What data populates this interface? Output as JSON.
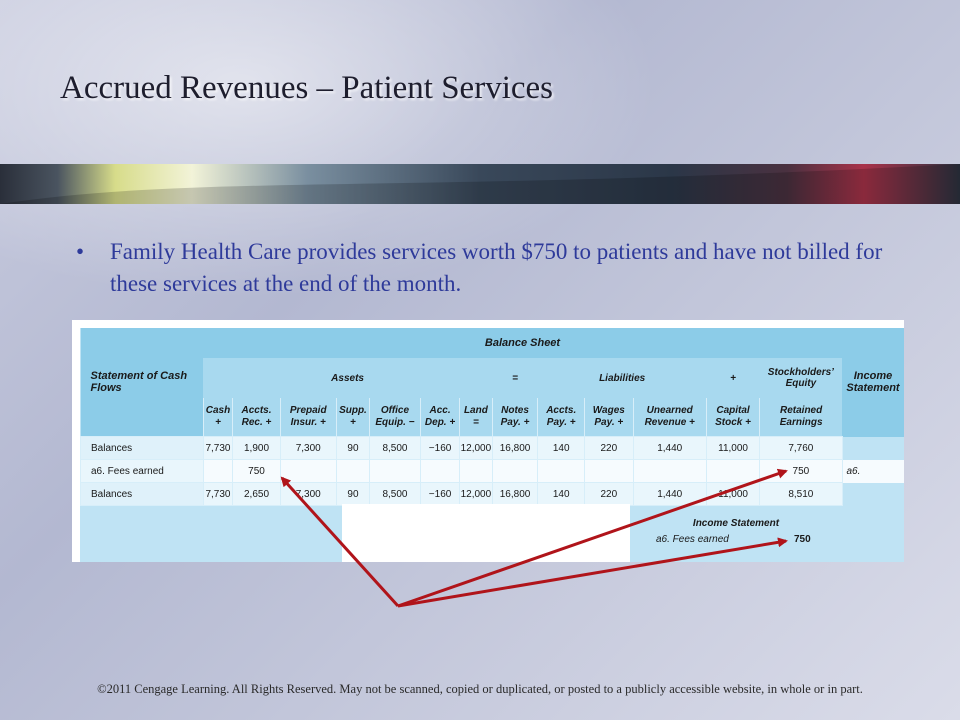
{
  "slide": {
    "title": "Accrued Revenues – Patient Services",
    "bullet": "Family Health Care provides services worth $750 to patients and have not billed for these services at the end of the month.",
    "footer": "©2011 Cengage Learning. All Rights Reserved. May not be scanned, copied or duplicated, or posted to a publicly accessible website, in whole or in part."
  },
  "figure": {
    "balance_sheet_title": "Balance Sheet",
    "left_header": "Statement of Cash Flows",
    "right_header": "Income Statement",
    "groups": {
      "assets": "Assets",
      "equals": "=",
      "liabilities": "Liabilities",
      "plus": "+",
      "equity": "Stockholders’ Equity"
    },
    "columns": [
      "Cash +",
      "Accts. Rec. +",
      "Prepaid Insur. +",
      "Supp. +",
      "Office Equip. −",
      "Acc. Dep. +",
      "Land =",
      "Notes Pay. +",
      "Accts. Pay. +",
      "Wages Pay. +",
      "Unearned Revenue +",
      "Capital Stock +",
      "Retained Earnings"
    ],
    "rows": [
      {
        "label": "Balances",
        "side": "",
        "values": [
          "7,730",
          "1,900",
          "7,300",
          "90",
          "8,500",
          "−160",
          "12,000",
          "16,800",
          "140",
          "220",
          "1,440",
          "11,000",
          "7,760"
        ]
      },
      {
        "label": "a6.  Fees earned",
        "side": "a6.",
        "values": [
          "",
          "750",
          "",
          "",
          "",
          "",
          "",
          "",
          "",
          "",
          "",
          "",
          "750"
        ]
      },
      {
        "label": "Balances",
        "side": "",
        "values": [
          "7,730",
          "2,650",
          "7,300",
          "90",
          "8,500",
          "−160",
          "12,000",
          "16,800",
          "140",
          "220",
          "1,440",
          "11,000",
          "8,510"
        ]
      }
    ],
    "income_statement": {
      "title": "Income Statement",
      "label": "a6.  Fees earned",
      "value": "750"
    }
  },
  "colors": {
    "bullet_text": "#2e3a9a",
    "arrow": "#b0141a",
    "table_header": "#8ccce8",
    "table_bg": "#bfe3f4"
  }
}
